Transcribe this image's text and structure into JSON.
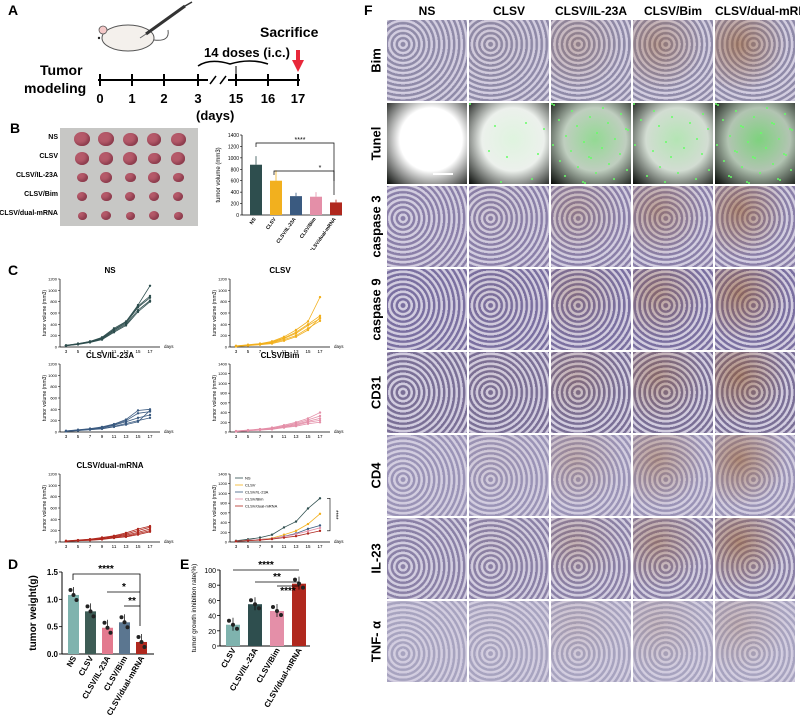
{
  "panels": {
    "a": "A",
    "b": "B",
    "c": "C",
    "d": "D",
    "e": "E",
    "f": "F"
  },
  "panelA": {
    "timeline_labels": [
      "0",
      "1",
      "2",
      "3",
      "15",
      "16",
      "17"
    ],
    "tumor": "Tumor",
    "modeling": "modeling",
    "doses": "14 doses (i.c.)",
    "sacrifice": "Sacrifice",
    "days": "(days)"
  },
  "groups": [
    "NS",
    "CLSV",
    "CLSV/IL-23A",
    "CLSV/Bim",
    "CLSV/dual-mRNA"
  ],
  "colors": {
    "NS": "#2e4e4e",
    "CLSV": "#f2b01e",
    "CLSV/IL-23A": "#3a5a80",
    "CLSV/Bim": "#e48fa8",
    "CLSV/dual-mRNA": "#b0281e",
    "D_NS": "#7fb3ae",
    "D_CLSV": "#3d5c55",
    "D_IL": "#e37a8f",
    "D_Bim": "#5b7690",
    "D_dual": "#b0281e",
    "E_CLSV": "#7fb3ae",
    "E_IL": "#2e4e4e",
    "E_Bim": "#e48fa8",
    "E_dual": "#b0281e"
  },
  "panelB": {
    "ylabel": "tumor volume (mm3)",
    "yticks": [
      "0",
      "200",
      "400",
      "600",
      "800",
      "1000",
      "1200",
      "1400"
    ],
    "sig": [
      "****",
      "*"
    ],
    "photo_labels": [
      "NS",
      "CLSV",
      "CLSV/IL-23A",
      "CLSV/Bim",
      "CLSV/dual-mRNA"
    ]
  },
  "chart_data": [
    {
      "type": "bar",
      "title": "",
      "ylabel": "tumor volume (mm3)",
      "categories": [
        "NS",
        "CLSV",
        "CLSV/IL-23A",
        "CLSV/Bim",
        "CLSV/dual-mRNA"
      ],
      "values": [
        880,
        600,
        330,
        320,
        220
      ],
      "ylim": [
        0,
        1400
      ]
    },
    {
      "type": "line",
      "title": "NS",
      "ylabel": "tumor volume (mm3)",
      "xlabel": "days",
      "x": [
        3,
        5,
        7,
        9,
        11,
        13,
        15,
        17
      ],
      "ylim": [
        0,
        1200
      ],
      "series": [
        {
          "values": [
            30,
            60,
            100,
            170,
            330,
            450,
            740,
            1080
          ]
        },
        {
          "values": [
            25,
            55,
            90,
            150,
            300,
            420,
            700,
            870
          ]
        },
        {
          "values": [
            20,
            50,
            85,
            140,
            280,
            400,
            650,
            820
          ]
        },
        {
          "values": [
            22,
            45,
            80,
            130,
            260,
            380,
            620,
            800
          ]
        },
        {
          "values": [
            28,
            58,
            95,
            160,
            310,
            440,
            720,
            900
          ]
        }
      ]
    },
    {
      "type": "line",
      "title": "CLSV",
      "ylabel": "tumor volume (mm3)",
      "xlabel": "days",
      "x": [
        3,
        5,
        7,
        9,
        11,
        13,
        15,
        17
      ],
      "ylim": [
        0,
        1200
      ],
      "series": [
        {
          "values": [
            20,
            40,
            60,
            100,
            180,
            300,
            450,
            880
          ]
        },
        {
          "values": [
            18,
            35,
            55,
            90,
            160,
            260,
            400,
            550
          ]
        },
        {
          "values": [
            15,
            30,
            50,
            80,
            150,
            240,
            380,
            500
          ]
        },
        {
          "values": [
            12,
            28,
            45,
            70,
            130,
            200,
            330,
            460
          ]
        },
        {
          "values": [
            10,
            25,
            40,
            60,
            110,
            180,
            300,
            520
          ]
        }
      ]
    },
    {
      "type": "line",
      "title": "CLSV/IL-23A",
      "ylabel": "tumor volume (mm3)",
      "xlabel": "days",
      "x": [
        3,
        5,
        7,
        9,
        11,
        13,
        15,
        17
      ],
      "ylim": [
        0,
        1200
      ],
      "series": [
        {
          "values": [
            20,
            40,
            60,
            90,
            140,
            220,
            380,
            400
          ]
        },
        {
          "values": [
            18,
            35,
            55,
            80,
            130,
            200,
            330,
            360
          ]
        },
        {
          "values": [
            15,
            30,
            50,
            70,
            120,
            180,
            250,
            300
          ]
        },
        {
          "values": [
            12,
            28,
            45,
            60,
            100,
            150,
            200,
            250
          ]
        },
        {
          "values": [
            10,
            25,
            40,
            55,
            90,
            130,
            180,
            380
          ]
        }
      ]
    },
    {
      "type": "line",
      "title": "CLSV/Bim",
      "ylabel": "tumor volume (mm3)",
      "xlabel": "days",
      "x": [
        3,
        5,
        7,
        9,
        11,
        13,
        15,
        17
      ],
      "ylim": [
        0,
        1400
      ],
      "series": [
        {
          "values": [
            20,
            40,
            60,
            90,
            140,
            200,
            280,
            400
          ]
        },
        {
          "values": [
            18,
            35,
            55,
            80,
            120,
            180,
            250,
            330
          ]
        },
        {
          "values": [
            15,
            30,
            50,
            70,
            110,
            160,
            220,
            280
          ]
        },
        {
          "values": [
            12,
            28,
            45,
            60,
            100,
            140,
            200,
            240
          ]
        },
        {
          "values": [
            10,
            25,
            40,
            55,
            90,
            120,
            170,
            200
          ]
        }
      ]
    },
    {
      "type": "line",
      "title": "CLSV/dual-mRNA",
      "ylabel": "tumor volume (mm3)",
      "xlabel": "days",
      "x": [
        3,
        5,
        7,
        9,
        11,
        13,
        15,
        17
      ],
      "ylim": [
        0,
        1200
      ],
      "series": [
        {
          "values": [
            20,
            35,
            50,
            80,
            110,
            160,
            230,
            280
          ]
        },
        {
          "values": [
            18,
            30,
            45,
            70,
            100,
            140,
            200,
            260
          ]
        },
        {
          "values": [
            15,
            28,
            40,
            60,
            90,
            120,
            170,
            230
          ]
        },
        {
          "values": [
            12,
            25,
            35,
            50,
            80,
            100,
            150,
            200
          ]
        },
        {
          "values": [
            10,
            22,
            30,
            45,
            70,
            90,
            130,
            180
          ]
        }
      ]
    },
    {
      "type": "line",
      "title": "",
      "ylabel": "tumor volume (mm3)",
      "xlabel": "days",
      "x": [
        3,
        5,
        7,
        9,
        11,
        13,
        15,
        17
      ],
      "ylim": [
        0,
        1400
      ],
      "series": [
        {
          "name": "NS",
          "values": [
            25,
            55,
            90,
            150,
            300,
            420,
            690,
            900
          ]
        },
        {
          "name": "CLSV",
          "values": [
            15,
            32,
            50,
            80,
            150,
            230,
            370,
            580
          ]
        },
        {
          "name": "CLSV/IL-23A",
          "values": [
            15,
            32,
            50,
            70,
            115,
            175,
            270,
            340
          ]
        },
        {
          "name": "CLSV/Bim",
          "values": [
            15,
            32,
            50,
            70,
            110,
            160,
            225,
            290
          ]
        },
        {
          "name": "CLSV/dual-mRNA",
          "values": [
            15,
            28,
            40,
            60,
            90,
            120,
            175,
            230
          ]
        }
      ],
      "sig": "****"
    },
    {
      "type": "bar",
      "title": "",
      "ylabel": "tumor weight(g)",
      "categories": [
        "NS",
        "CLSV",
        "CLSV/IL-23A",
        "CLSV/Bim",
        "CLSV/dual-mRNA"
      ],
      "values": [
        1.08,
        0.78,
        0.48,
        0.58,
        0.22
      ],
      "ylim": [
        0,
        1.5
      ],
      "sig": [
        "****",
        "*",
        "**"
      ]
    },
    {
      "type": "bar",
      "title": "",
      "ylabel": "tumor growth inhibition rate(%)",
      "categories": [
        "CLSV",
        "CLSV/IL-23A",
        "CLSV/Bim",
        "CLSV/dual-mRNA"
      ],
      "values": [
        28,
        55,
        46,
        82
      ],
      "ylim": [
        0,
        100
      ],
      "sig": [
        "****",
        "**",
        "****"
      ]
    }
  ],
  "panelC": {
    "days": "days",
    "ylabel": "tumor volume (mm3)",
    "yticks1200": [
      "0",
      "200",
      "400",
      "600",
      "800",
      "1000",
      "1200"
    ],
    "yticks1400": [
      "0",
      "200",
      "400",
      "600",
      "800",
      "1000",
      "1200",
      "1400"
    ],
    "xticks": [
      "3",
      "5",
      "7",
      "9",
      "11",
      "13",
      "15",
      "17"
    ]
  },
  "panelD": {
    "yticks": [
      "0.0",
      "0.5",
      "1.0",
      "1.5"
    ]
  },
  "panelE": {
    "yticks": [
      "0",
      "20",
      "40",
      "60",
      "80",
      "100"
    ]
  },
  "panelF": {
    "columns": [
      "NS",
      "CLSV",
      "CLSV/IL-23A",
      "CLSV/Bim",
      "CLSV/dual-mRNA"
    ],
    "rows": [
      "Bim",
      "Tunel",
      "caspase 3",
      "caspase 9",
      "CD31",
      "CD4",
      "IL-23",
      "TNF- α"
    ]
  }
}
